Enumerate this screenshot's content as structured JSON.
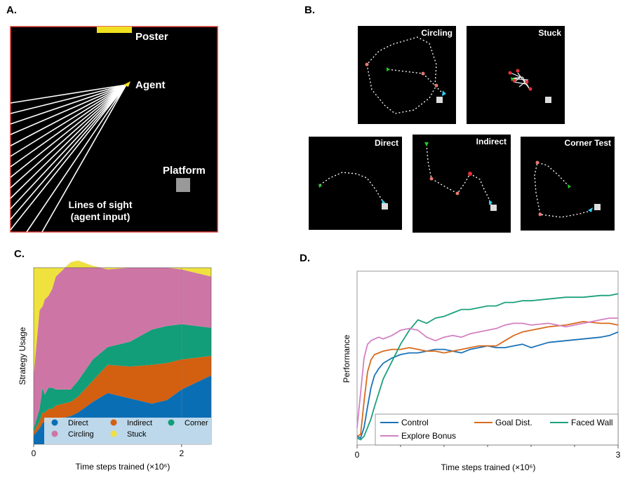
{
  "panels": {
    "a": "A.",
    "b": "B.",
    "c": "C.",
    "d": "D."
  },
  "panel_a": {
    "poster_label": "Poster",
    "agent_label": "Agent",
    "platform_label": "Platform",
    "sight_label_1": "Lines of sight",
    "sight_label_2": "(agent input)",
    "colors": {
      "arena": "#000000",
      "border": "#d9342b",
      "poster": "#f0e020",
      "platform": "#999999"
    }
  },
  "panel_b": {
    "examples": [
      {
        "title": "Circling"
      },
      {
        "title": "Stuck"
      },
      {
        "title": "Direct"
      },
      {
        "title": "Indirect"
      },
      {
        "title": "Corner Test"
      }
    ],
    "colors": {
      "path": "#f2f2f2",
      "start": "#22cc22",
      "end": "#33ccee",
      "turn": "#e8786e",
      "goal": "#dddddd"
    }
  },
  "chart_data": [
    {
      "type": "area",
      "stacked": true,
      "xlabel": "Time steps trained (×10⁶)",
      "ylabel": "Strategy Usage",
      "xlim": [
        0,
        2.4
      ],
      "ylim": [
        0,
        1
      ],
      "xticks": [
        "0",
        "2"
      ],
      "x": [
        0,
        0.08,
        0.12,
        0.15,
        0.2,
        0.25,
        0.3,
        0.5,
        0.6,
        0.8,
        1.0,
        1.3,
        1.6,
        1.8,
        2.0,
        2.4
      ],
      "series": [
        {
          "name": "Direct",
          "color": "#0a6eb4",
          "values": [
            0.05,
            0.09,
            0.12,
            0.13,
            0.12,
            0.14,
            0.14,
            0.16,
            0.18,
            0.24,
            0.29,
            0.26,
            0.23,
            0.25,
            0.31,
            0.39
          ]
        },
        {
          "name": "Indirect",
          "color": "#d35f10",
          "values": [
            0.02,
            0.04,
            0.06,
            0.05,
            0.08,
            0.06,
            0.08,
            0.08,
            0.09,
            0.12,
            0.16,
            0.18,
            0.22,
            0.21,
            0.17,
            0.11
          ]
        },
        {
          "name": "Corner",
          "color": "#129e78",
          "values": [
            0.02,
            0.07,
            0.14,
            0.1,
            0.12,
            0.12,
            0.09,
            0.07,
            0.09,
            0.12,
            0.1,
            0.14,
            0.2,
            0.21,
            0.2,
            0.16
          ]
        },
        {
          "name": "Circling",
          "color": "#cd76a6",
          "values": [
            0.3,
            0.56,
            0.46,
            0.54,
            0.52,
            0.56,
            0.64,
            0.72,
            0.68,
            0.53,
            0.44,
            0.42,
            0.35,
            0.33,
            0.31,
            0.29
          ]
        },
        {
          "name": "Stuck",
          "color": "#efe23e",
          "values": [
            0.61,
            0.24,
            0.22,
            0.18,
            0.16,
            0.12,
            0.05,
            -0.03,
            -0.04,
            -0.01,
            0.01,
            0.0,
            0.0,
            0.0,
            0.01,
            0.05
          ]
        }
      ],
      "legend_placement": "bottom"
    },
    {
      "type": "line",
      "xlabel": "Time steps trained (×10⁶)",
      "ylabel": "Performance",
      "xlim": [
        0,
        3
      ],
      "ylim": [
        0,
        1
      ],
      "xticks": [
        "0",
        "3"
      ],
      "series": [
        {
          "name": "Control",
          "color": "#1a72b8",
          "x": [
            0,
            0.04,
            0.08,
            0.12,
            0.16,
            0.2,
            0.25,
            0.3,
            0.4,
            0.5,
            0.6,
            0.7,
            0.8,
            0.9,
            1.0,
            1.1,
            1.2,
            1.3,
            1.4,
            1.5,
            1.6,
            1.7,
            1.8,
            1.9,
            2.0,
            2.2,
            2.4,
            2.6,
            2.8,
            2.9,
            3.0
          ],
          "y": [
            0.05,
            0.04,
            0.1,
            0.22,
            0.33,
            0.4,
            0.44,
            0.47,
            0.5,
            0.52,
            0.53,
            0.53,
            0.54,
            0.55,
            0.55,
            0.54,
            0.53,
            0.55,
            0.56,
            0.57,
            0.56,
            0.56,
            0.57,
            0.58,
            0.56,
            0.59,
            0.6,
            0.61,
            0.62,
            0.63,
            0.65
          ]
        },
        {
          "name": "Goal Dist.",
          "color": "#d86a1c",
          "x": [
            0,
            0.04,
            0.08,
            0.12,
            0.16,
            0.2,
            0.25,
            0.3,
            0.4,
            0.5,
            0.6,
            0.7,
            0.8,
            0.9,
            1.0,
            1.1,
            1.2,
            1.3,
            1.4,
            1.5,
            1.6,
            1.7,
            1.8,
            1.9,
            2.0,
            2.2,
            2.4,
            2.6,
            2.8,
            2.9,
            3.0
          ],
          "y": [
            0.05,
            0.06,
            0.25,
            0.42,
            0.49,
            0.52,
            0.53,
            0.54,
            0.55,
            0.55,
            0.56,
            0.55,
            0.54,
            0.54,
            0.53,
            0.54,
            0.55,
            0.56,
            0.57,
            0.57,
            0.57,
            0.6,
            0.63,
            0.65,
            0.66,
            0.68,
            0.69,
            0.71,
            0.7,
            0.7,
            0.69
          ]
        },
        {
          "name": "Faced Wall",
          "color": "#1aa07c",
          "x": [
            0,
            0.04,
            0.08,
            0.12,
            0.16,
            0.2,
            0.25,
            0.3,
            0.4,
            0.5,
            0.6,
            0.7,
            0.8,
            0.9,
            1.0,
            1.1,
            1.2,
            1.3,
            1.4,
            1.5,
            1.6,
            1.7,
            1.8,
            1.9,
            2.0,
            2.2,
            2.4,
            2.6,
            2.8,
            2.9,
            3.0
          ],
          "y": [
            0.04,
            0.03,
            0.05,
            0.1,
            0.15,
            0.22,
            0.3,
            0.38,
            0.48,
            0.58,
            0.66,
            0.72,
            0.7,
            0.73,
            0.74,
            0.76,
            0.78,
            0.78,
            0.79,
            0.8,
            0.8,
            0.82,
            0.82,
            0.83,
            0.83,
            0.84,
            0.85,
            0.85,
            0.86,
            0.86,
            0.87
          ]
        },
        {
          "name": "Explore Bonus",
          "color": "#d380c2",
          "x": [
            0,
            0.04,
            0.08,
            0.12,
            0.16,
            0.2,
            0.25,
            0.3,
            0.4,
            0.5,
            0.6,
            0.7,
            0.8,
            0.9,
            1.0,
            1.1,
            1.2,
            1.3,
            1.4,
            1.5,
            1.6,
            1.7,
            1.8,
            1.9,
            2.0,
            2.2,
            2.4,
            2.6,
            2.8,
            2.9,
            3.0
          ],
          "y": [
            0.1,
            0.3,
            0.5,
            0.58,
            0.6,
            0.61,
            0.62,
            0.61,
            0.63,
            0.66,
            0.67,
            0.66,
            0.62,
            0.6,
            0.62,
            0.63,
            0.62,
            0.64,
            0.65,
            0.66,
            0.67,
            0.69,
            0.7,
            0.7,
            0.69,
            0.7,
            0.68,
            0.7,
            0.72,
            0.73,
            0.73
          ]
        }
      ],
      "legend_placement": "bottom"
    }
  ]
}
